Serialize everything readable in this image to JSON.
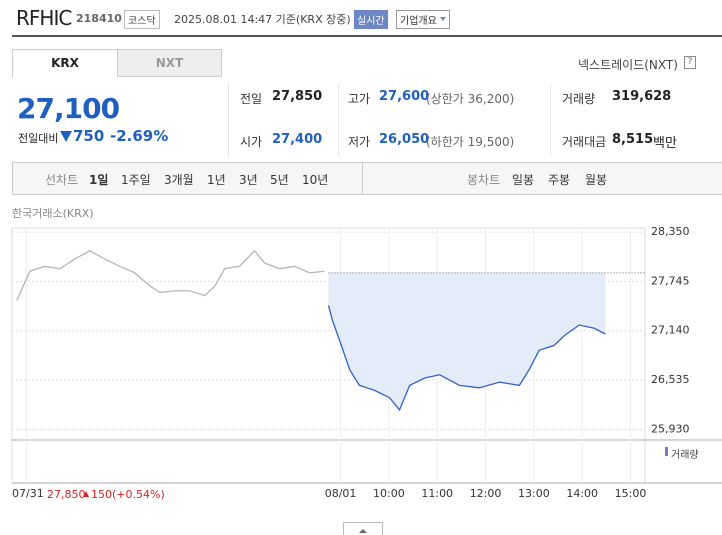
{
  "header": {
    "name": "RFHIC",
    "code": "218410",
    "market": "코스닥",
    "timestamp": "2025.08.01 14:47 기준(KRX 장중)",
    "realtime": "실시간",
    "company_info": "기업개요"
  },
  "tabs": [
    "KRX",
    "NXT"
  ],
  "nxt_link": "넥스트레이드(NXT)",
  "quote": {
    "price": "27,100",
    "change_label": "전일대비",
    "change": "750",
    "change_rate": "-2.69%"
  },
  "stats": [
    {
      "label": "전일",
      "value": "27,850"
    },
    {
      "label": "고가",
      "value": "27,600",
      "extra": "(상한가 36,200)"
    },
    {
      "label": "거래량",
      "value": "319,628"
    },
    {
      "label": "시가",
      "value": "27,400"
    },
    {
      "label": "저가",
      "value": "26,050",
      "extra": "(하한가 19,500)"
    },
    {
      "label": "거래대금",
      "value": "8,515",
      "unit": "백만"
    }
  ],
  "period_bar": {
    "label": "선차트",
    "options": [
      "1일",
      "1주일",
      "3개월",
      "1년",
      "3년",
      "5년",
      "10년"
    ],
    "candle_label": "봉차트",
    "candle_options": [
      "일봉",
      "주봉",
      "월봉"
    ]
  },
  "chart_data": {
    "type": "line",
    "subtitle": "한국거래소(KRX)",
    "volume_legend": "거래량",
    "prev_summary": {
      "price": "27,850",
      "change": "150",
      "rate": "(+0.54%)"
    },
    "xlim": [
      2.2,
      15.3
    ],
    "xticks": [
      {
        "value": 2.5,
        "label": "07/31"
      },
      {
        "value": 9,
        "label": "08/01"
      },
      {
        "value": 10,
        "label": "10:00"
      },
      {
        "value": 11,
        "label": "11:00"
      },
      {
        "value": 12,
        "label": "12:00"
      },
      {
        "value": 13,
        "label": "13:00"
      },
      {
        "value": 14,
        "label": "14:00"
      },
      {
        "value": 15,
        "label": "15:00"
      }
    ],
    "ylim": [
      25800,
      28400
    ],
    "yticks": [
      {
        "value": 25930,
        "label": "25,930"
      },
      {
        "value": 26535,
        "label": "26,535"
      },
      {
        "value": 27140,
        "label": "27,140"
      },
      {
        "value": 27745,
        "label": "27,745"
      },
      {
        "value": 28350,
        "label": "28,350"
      }
    ],
    "reference_line": 27850,
    "grid": true,
    "series": [
      {
        "color": "#b5b5b5",
        "x": [
          2.3,
          2.57,
          2.88,
          3.19,
          3.5,
          3.81,
          4.12,
          4.43,
          4.74,
          5.05,
          5.26,
          5.57,
          5.88,
          6.19,
          6.4,
          6.6,
          6.91,
          7.22,
          7.43,
          7.74,
          8.05,
          8.36,
          8.67
        ],
        "values": [
          27510,
          27870,
          27930,
          27900,
          28020,
          28120,
          28020,
          27930,
          27850,
          27690,
          27610,
          27630,
          27630,
          27570,
          27690,
          27900,
          27930,
          28120,
          27970,
          27900,
          27930,
          27850,
          27870
        ]
      },
      {
        "color": "#2f62c8",
        "fill": "#e4ecfa",
        "x": [
          8.75,
          8.83,
          8.98,
          9.19,
          9.39,
          9.7,
          10.01,
          10.22,
          10.43,
          10.74,
          11.05,
          11.46,
          11.87,
          12.29,
          12.7,
          12.9,
          13.11,
          13.42,
          13.63,
          13.94,
          14.25,
          14.48
        ],
        "values": [
          27450,
          27270,
          27020,
          26660,
          26470,
          26410,
          26320,
          26170,
          26470,
          26560,
          26600,
          26470,
          26440,
          26510,
          26470,
          26660,
          26900,
          26960,
          27080,
          27210,
          27170,
          27100
        ]
      }
    ]
  }
}
